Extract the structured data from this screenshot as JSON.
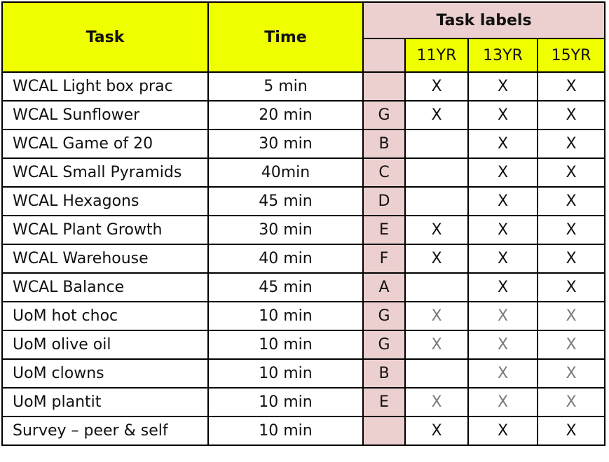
{
  "header": {
    "task": "Task",
    "time": "Time",
    "task_labels": "Task labels",
    "years": [
      "11YR",
      "13YR",
      "15YR"
    ]
  },
  "colors": {
    "header_yellow": "#f0ff00",
    "label_pink": "#ecd0d0",
    "gray_mark": "#7a7a7a"
  },
  "rows": [
    {
      "task": "WCAL Light box prac",
      "time": "5 min",
      "label": "",
      "y11": "X",
      "y13": "X",
      "y15": "X",
      "gray": false
    },
    {
      "task": "WCAL Sunflower",
      "time": "20 min",
      "label": "G",
      "y11": "X",
      "y13": "X",
      "y15": "X",
      "gray": false
    },
    {
      "task": "WCAL Game of 20",
      "time": "30 min",
      "label": "B",
      "y11": "",
      "y13": "X",
      "y15": "X",
      "gray": false
    },
    {
      "task": "WCAL Small Pyramids",
      "time": "40min",
      "label": "C",
      "y11": "",
      "y13": "X",
      "y15": "X",
      "gray": false
    },
    {
      "task": "WCAL Hexagons",
      "time": "45 min",
      "label": "D",
      "y11": "",
      "y13": "X",
      "y15": "X",
      "gray": false
    },
    {
      "task": "WCAL Plant Growth",
      "time": "30 min",
      "label": "E",
      "y11": "X",
      "y13": "X",
      "y15": "X",
      "gray": false
    },
    {
      "task": "WCAL Warehouse",
      "time": "40 min",
      "label": "F",
      "y11": "X",
      "y13": "X",
      "y15": "X",
      "gray": false
    },
    {
      "task": "WCAL Balance",
      "time": "45 min",
      "label": "A",
      "y11": "",
      "y13": "X",
      "y15": "X",
      "gray": false
    },
    {
      "task": "UoM hot choc",
      "time": "10 min",
      "label": "G",
      "y11": "X",
      "y13": "X",
      "y15": "X",
      "gray": true
    },
    {
      "task": "UoM olive oil",
      "time": "10 min",
      "label": "G",
      "y11": "X",
      "y13": "X",
      "y15": "X",
      "gray": true
    },
    {
      "task": "UoM clowns",
      "time": "10 min",
      "label": "B",
      "y11": "",
      "y13": "X",
      "y15": "X",
      "gray": true
    },
    {
      "task": "UoM plantit",
      "time": "10 min",
      "label": "E",
      "y11": "X",
      "y13": "X",
      "y15": "X",
      "gray": true
    },
    {
      "task": "Survey – peer & self",
      "time": "10 min",
      "label": "",
      "y11": "X",
      "y13": "X",
      "y15": "X",
      "gray": false
    }
  ]
}
